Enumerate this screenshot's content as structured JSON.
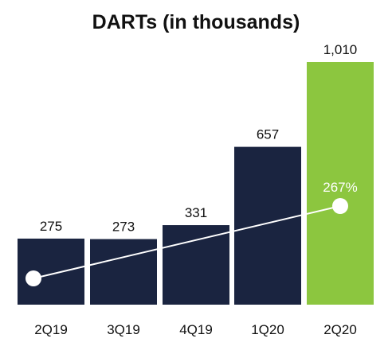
{
  "chart_data": {
    "type": "bar",
    "title": "DARTs (in thousands)",
    "categories": [
      "2Q19",
      "3Q19",
      "4Q19",
      "1Q20",
      "2Q20"
    ],
    "values": [
      275,
      273,
      331,
      657,
      1010
    ],
    "value_labels": [
      "275",
      "273",
      "331",
      "657",
      "1,010"
    ],
    "ylim": [
      0,
      1010
    ],
    "grid": false,
    "colors": {
      "bar": "#1a2440",
      "highlight_bar": "#8cc63f",
      "line": "#ffffff",
      "marker": "#ffffff"
    },
    "highlight_index": 4,
    "growth_line": {
      "from_category": "2Q19",
      "to_category": "2Q20",
      "label": "267%"
    }
  }
}
